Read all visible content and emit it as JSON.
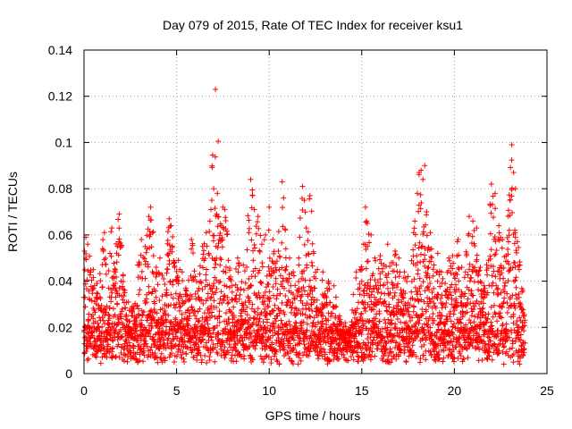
{
  "chart_data": {
    "type": "scatter",
    "title": "Day 079 of 2015, Rate Of TEC Index for receiver ksu1",
    "xlabel": "GPS time / hours",
    "ylabel": "ROTI / TECUs",
    "xlim": [
      0,
      25
    ],
    "ylim": [
      0,
      0.14
    ],
    "xticks": [
      0,
      5,
      10,
      15,
      20,
      25
    ],
    "yticks": [
      0,
      0.02,
      0.04,
      0.06,
      0.08,
      0.1,
      0.12,
      0.14
    ],
    "xtick_labels": [
      "0",
      "5",
      "10",
      "15",
      "20",
      "25"
    ],
    "ytick_labels": [
      "0",
      "0.02",
      "0.04",
      "0.06",
      "0.08",
      "0.1",
      "0.12",
      "0.14"
    ],
    "grid": true,
    "marker": "+",
    "color": "#ff0000",
    "series": [
      {
        "name": "ROTI",
        "points": [
          [
            0.1,
            0.059
          ],
          [
            0.2,
            0.056
          ],
          [
            0.3,
            0.032
          ],
          [
            0.5,
            0.045
          ],
          [
            0.7,
            0.039
          ],
          [
            0.8,
            0.028
          ],
          [
            1.0,
            0.054
          ],
          [
            1.1,
            0.061
          ],
          [
            1.2,
            0.043
          ],
          [
            1.4,
            0.052
          ],
          [
            1.5,
            0.063
          ],
          [
            1.7,
            0.044
          ],
          [
            1.8,
            0.055
          ],
          [
            1.9,
            0.069
          ],
          [
            2.0,
            0.04
          ],
          [
            2.2,
            0.036
          ],
          [
            2.4,
            0.031
          ],
          [
            2.6,
            0.029
          ],
          [
            2.9,
            0.047
          ],
          [
            3.1,
            0.058
          ],
          [
            3.3,
            0.055
          ],
          [
            3.5,
            0.068
          ],
          [
            3.6,
            0.072
          ],
          [
            3.7,
            0.061
          ],
          [
            3.9,
            0.046
          ],
          [
            4.1,
            0.05
          ],
          [
            4.3,
            0.041
          ],
          [
            4.6,
            0.067
          ],
          [
            4.7,
            0.064
          ],
          [
            4.9,
            0.048
          ],
          [
            5.1,
            0.049
          ],
          [
            5.3,
            0.044
          ],
          [
            5.5,
            0.037
          ],
          [
            5.8,
            0.058
          ],
          [
            6.0,
            0.042
          ],
          [
            6.2,
            0.033
          ],
          [
            6.4,
            0.055
          ],
          [
            6.6,
            0.061
          ],
          [
            6.8,
            0.066
          ],
          [
            6.9,
            0.075
          ],
          [
            7.0,
            0.08
          ],
          [
            7.1,
            0.123
          ],
          [
            7.2,
            0.078
          ],
          [
            7.3,
            0.058
          ],
          [
            7.5,
            0.072
          ],
          [
            7.6,
            0.071
          ],
          [
            7.8,
            0.049
          ],
          [
            8.0,
            0.038
          ],
          [
            8.3,
            0.05
          ],
          [
            8.6,
            0.047
          ],
          [
            8.9,
            0.061
          ],
          [
            9.0,
            0.084
          ],
          [
            9.1,
            0.077
          ],
          [
            9.2,
            0.071
          ],
          [
            9.4,
            0.068
          ],
          [
            9.6,
            0.056
          ],
          [
            9.8,
            0.06
          ],
          [
            10.0,
            0.072
          ],
          [
            10.2,
            0.058
          ],
          [
            10.5,
            0.053
          ],
          [
            10.7,
            0.083
          ],
          [
            10.9,
            0.054
          ],
          [
            11.1,
            0.05
          ],
          [
            11.3,
            0.044
          ],
          [
            11.6,
            0.047
          ],
          [
            11.8,
            0.081
          ],
          [
            11.9,
            0.075
          ],
          [
            12.0,
            0.063
          ],
          [
            12.2,
            0.077
          ],
          [
            12.4,
            0.052
          ],
          [
            12.6,
            0.045
          ],
          [
            12.9,
            0.044
          ],
          [
            13.2,
            0.04
          ],
          [
            13.5,
            0.038
          ],
          [
            13.8,
            0.025
          ],
          [
            14.1,
            0.022
          ],
          [
            14.4,
            0.02
          ],
          [
            14.7,
            0.044
          ],
          [
            14.9,
            0.045
          ],
          [
            15.1,
            0.056
          ],
          [
            15.2,
            0.072
          ],
          [
            15.3,
            0.065
          ],
          [
            15.5,
            0.06
          ],
          [
            15.7,
            0.05
          ],
          [
            16.0,
            0.051
          ],
          [
            16.2,
            0.047
          ],
          [
            16.4,
            0.056
          ],
          [
            16.6,
            0.048
          ],
          [
            16.8,
            0.053
          ],
          [
            17.0,
            0.05
          ],
          [
            17.3,
            0.044
          ],
          [
            17.5,
            0.042
          ],
          [
            17.8,
            0.061
          ],
          [
            18.0,
            0.078
          ],
          [
            18.1,
            0.087
          ],
          [
            18.2,
            0.088
          ],
          [
            18.3,
            0.084
          ],
          [
            18.4,
            0.09
          ],
          [
            18.5,
            0.07
          ],
          [
            18.7,
            0.061
          ],
          [
            18.9,
            0.047
          ],
          [
            19.1,
            0.052
          ],
          [
            19.3,
            0.044
          ],
          [
            19.5,
            0.039
          ],
          [
            19.7,
            0.05
          ],
          [
            19.9,
            0.051
          ],
          [
            20.2,
            0.058
          ],
          [
            20.4,
            0.046
          ],
          [
            20.6,
            0.044
          ],
          [
            20.8,
            0.068
          ],
          [
            21.0,
            0.066
          ],
          [
            21.2,
            0.063
          ],
          [
            21.4,
            0.046
          ],
          [
            21.6,
            0.038
          ],
          [
            21.8,
            0.035
          ],
          [
            22.0,
            0.082
          ],
          [
            22.2,
            0.078
          ],
          [
            22.4,
            0.064
          ],
          [
            22.6,
            0.058
          ],
          [
            22.8,
            0.051
          ],
          [
            23.0,
            0.075
          ],
          [
            23.1,
            0.099
          ],
          [
            23.2,
            0.087
          ],
          [
            23.3,
            0.08
          ],
          [
            23.5,
            0.045
          ],
          [
            23.7,
            0.036
          ]
        ]
      }
    ]
  }
}
